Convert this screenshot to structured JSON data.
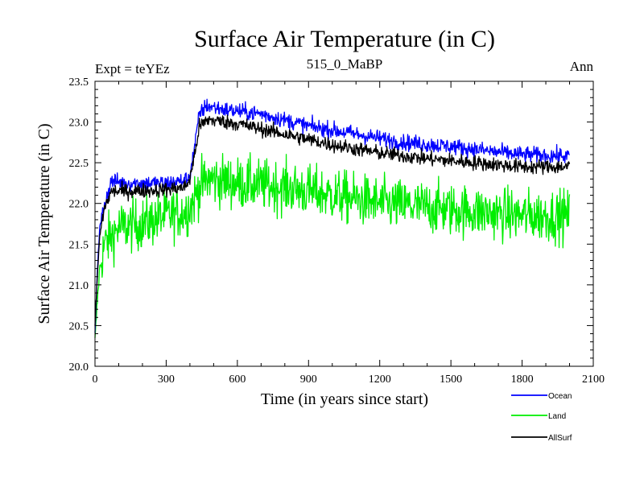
{
  "chart_data": {
    "type": "line",
    "title": "Surface Air Temperature (in C)",
    "subtitle": "515_0_MaBP",
    "left_annotation": "Expt = teYEz",
    "right_annotation": "Ann",
    "xlabel": "Time (in years since start)",
    "ylabel": "Surface Air Temperature (in C)",
    "xlim": [
      0,
      2100
    ],
    "ylim": [
      20.0,
      23.5
    ],
    "x_ticks": [
      "0",
      "300",
      "600",
      "900",
      "1200",
      "1500",
      "1800",
      "2100"
    ],
    "y_ticks": [
      "20.0",
      "20.5",
      "21.0",
      "21.5",
      "22.0",
      "22.5",
      "23.0",
      "23.5"
    ],
    "legend": [
      "Ocean",
      "Land",
      "AllSurf"
    ],
    "series": [
      {
        "name": "Ocean",
        "color": "#0000ff",
        "noise": 0.05,
        "points": [
          [
            0,
            20.4
          ],
          [
            10,
            21.2
          ],
          [
            20,
            21.7
          ],
          [
            40,
            22.0
          ],
          [
            70,
            22.28
          ],
          [
            120,
            22.25
          ],
          [
            200,
            22.25
          ],
          [
            300,
            22.25
          ],
          [
            380,
            22.28
          ],
          [
            400,
            22.35
          ],
          [
            420,
            22.7
          ],
          [
            440,
            23.1
          ],
          [
            470,
            23.2
          ],
          [
            550,
            23.15
          ],
          [
            700,
            23.1
          ],
          [
            900,
            22.95
          ],
          [
            1100,
            22.85
          ],
          [
            1300,
            22.75
          ],
          [
            1500,
            22.7
          ],
          [
            1700,
            22.63
          ],
          [
            1800,
            22.6
          ],
          [
            2000,
            22.58
          ]
        ]
      },
      {
        "name": "Land",
        "color": "#00ee00",
        "noise": 0.16,
        "points": [
          [
            0,
            20.3
          ],
          [
            10,
            20.8
          ],
          [
            20,
            21.2
          ],
          [
            40,
            21.5
          ],
          [
            100,
            21.7
          ],
          [
            200,
            21.75
          ],
          [
            300,
            21.85
          ],
          [
            380,
            21.9
          ],
          [
            410,
            22.0
          ],
          [
            440,
            22.2
          ],
          [
            480,
            22.3
          ],
          [
            600,
            22.25
          ],
          [
            800,
            22.2
          ],
          [
            1000,
            22.1
          ],
          [
            1200,
            22.0
          ],
          [
            1400,
            21.95
          ],
          [
            1600,
            21.9
          ],
          [
            1800,
            21.85
          ],
          [
            2000,
            21.85
          ]
        ]
      },
      {
        "name": "AllSurf",
        "color": "#000000",
        "noise": 0.045,
        "points": [
          [
            0,
            20.5
          ],
          [
            10,
            21.1
          ],
          [
            20,
            21.6
          ],
          [
            40,
            21.95
          ],
          [
            70,
            22.15
          ],
          [
            150,
            22.15
          ],
          [
            300,
            22.17
          ],
          [
            380,
            22.2
          ],
          [
            400,
            22.3
          ],
          [
            420,
            22.6
          ],
          [
            440,
            22.95
          ],
          [
            480,
            23.03
          ],
          [
            600,
            22.98
          ],
          [
            800,
            22.85
          ],
          [
            1000,
            22.72
          ],
          [
            1200,
            22.62
          ],
          [
            1400,
            22.55
          ],
          [
            1600,
            22.5
          ],
          [
            1800,
            22.45
          ],
          [
            2000,
            22.45
          ]
        ]
      }
    ]
  }
}
